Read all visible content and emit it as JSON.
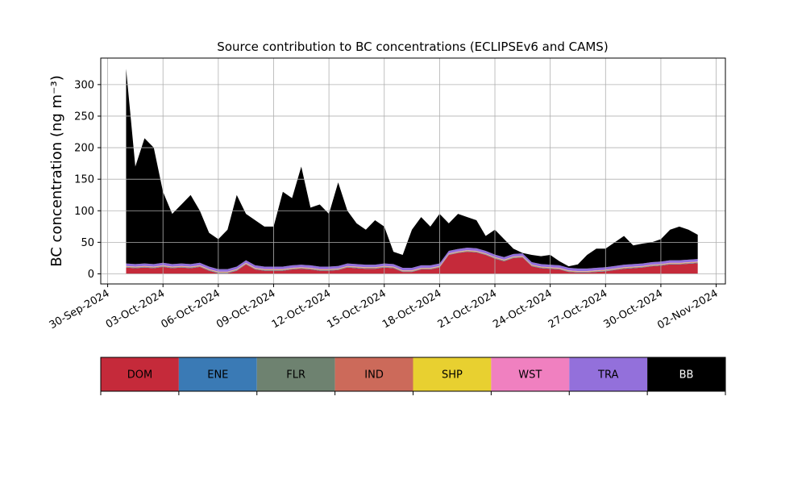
{
  "chart_data": {
    "type": "stacked_area",
    "title": "Source contribution to BC concentrations (ECLIPSEv6 and CAMS)",
    "y_label": "BC concentration (ng m⁻³)",
    "x": [
      "2024-10-01T00:00",
      "2024-10-01T12:00",
      "2024-10-02T00:00",
      "2024-10-02T12:00",
      "2024-10-03T00:00",
      "2024-10-03T12:00",
      "2024-10-04T00:00",
      "2024-10-04T12:00",
      "2024-10-05T00:00",
      "2024-10-05T12:00",
      "2024-10-06T00:00",
      "2024-10-06T12:00",
      "2024-10-07T00:00",
      "2024-10-07T12:00",
      "2024-10-08T00:00",
      "2024-10-08T12:00",
      "2024-10-09T00:00",
      "2024-10-09T12:00",
      "2024-10-10T00:00",
      "2024-10-10T12:00",
      "2024-10-11T00:00",
      "2024-10-11T12:00",
      "2024-10-12T00:00",
      "2024-10-12T12:00",
      "2024-10-13T00:00",
      "2024-10-13T12:00",
      "2024-10-14T00:00",
      "2024-10-14T12:00",
      "2024-10-15T00:00",
      "2024-10-15T12:00",
      "2024-10-16T00:00",
      "2024-10-16T12:00",
      "2024-10-17T00:00",
      "2024-10-17T12:00",
      "2024-10-18T00:00",
      "2024-10-18T12:00",
      "2024-10-19T00:00",
      "2024-10-19T12:00",
      "2024-10-20T00:00",
      "2024-10-20T12:00",
      "2024-10-21T00:00",
      "2024-10-21T12:00",
      "2024-10-22T00:00",
      "2024-10-22T12:00",
      "2024-10-23T00:00",
      "2024-10-23T12:00",
      "2024-10-24T00:00",
      "2024-10-24T12:00",
      "2024-10-25T00:00",
      "2024-10-25T12:00",
      "2024-10-26T00:00",
      "2024-10-26T12:00",
      "2024-10-27T00:00",
      "2024-10-27T12:00",
      "2024-10-28T00:00",
      "2024-10-28T12:00",
      "2024-10-29T00:00",
      "2024-10-29T12:00",
      "2024-10-30T00:00",
      "2024-10-30T12:00",
      "2024-10-31T00:00",
      "2024-10-31T12:00",
      "2024-11-01T00:00"
    ],
    "series": [
      {
        "name": "DOM",
        "color": "#c52a3a",
        "values": [
          10,
          9,
          10,
          9,
          11,
          9,
          10,
          9,
          11,
          5,
          1,
          1,
          5,
          15,
          7,
          5,
          5,
          5,
          7,
          8,
          7,
          5,
          5,
          6,
          10,
          9,
          8,
          8,
          10,
          9,
          3,
          3,
          7,
          7,
          10,
          30,
          33,
          35,
          34,
          30,
          24,
          20,
          25,
          26,
          12,
          9,
          8,
          7,
          3,
          2,
          2,
          3,
          4,
          6,
          8,
          9,
          10,
          12,
          13,
          15,
          15,
          16,
          17
        ]
      },
      {
        "name": "ENE",
        "color": "#3a7ab5",
        "values": [
          0.5,
          0.5,
          0.5,
          0.5,
          0.5,
          0.5,
          0.5,
          0.5,
          0.5,
          0.5,
          0.5,
          0.5,
          0.5,
          0.5,
          0.5,
          0.5,
          0.5,
          0.5,
          0.5,
          0.5,
          0.5,
          0.5,
          0.5,
          0.5,
          0.5,
          0.5,
          0.5,
          0.5,
          0.5,
          0.5,
          0.5,
          0.5,
          0.5,
          0.5,
          0.5,
          0.5,
          0.5,
          0.5,
          0.5,
          0.5,
          0.5,
          0.5,
          0.5,
          0.5,
          0.5,
          0.5,
          0.5,
          0.5,
          0.5,
          0.5,
          0.5,
          0.5,
          0.5,
          0.5,
          0.5,
          0.5,
          0.5,
          0.5,
          0.5,
          0.5,
          0.5,
          0.5,
          0.5
        ]
      },
      {
        "name": "FLR",
        "color": "#6e8270",
        "values": [
          0.5,
          0.5,
          0.5,
          0.5,
          0.5,
          0.5,
          0.5,
          0.5,
          0.5,
          0.5,
          0.5,
          0.5,
          0.5,
          0.5,
          0.5,
          0.5,
          0.5,
          0.5,
          0.5,
          0.5,
          0.5,
          0.5,
          0.5,
          0.5,
          0.5,
          0.5,
          0.5,
          0.5,
          0.5,
          0.5,
          0.5,
          0.5,
          0.5,
          0.5,
          0.5,
          0.5,
          0.5,
          0.5,
          0.5,
          0.5,
          0.5,
          0.5,
          0.5,
          0.5,
          0.5,
          0.5,
          0.5,
          0.5,
          0.5,
          0.5,
          0.5,
          0.5,
          0.5,
          0.5,
          0.5,
          0.5,
          0.5,
          0.5,
          0.5,
          0.5,
          0.5,
          0.5,
          0.5
        ]
      },
      {
        "name": "IND",
        "color": "#cc6a5a",
        "values": [
          0.5,
          0.5,
          0.5,
          0.5,
          0.5,
          0.5,
          0.5,
          0.5,
          0.5,
          0.5,
          0.5,
          0.5,
          0.5,
          0.5,
          0.5,
          0.5,
          0.5,
          0.5,
          0.5,
          0.5,
          0.5,
          0.5,
          0.5,
          0.5,
          0.5,
          0.5,
          0.5,
          0.5,
          0.5,
          0.5,
          0.5,
          0.5,
          0.5,
          0.5,
          0.5,
          0.5,
          0.5,
          0.5,
          0.5,
          0.5,
          0.5,
          0.5,
          0.5,
          0.5,
          0.5,
          0.5,
          0.5,
          0.5,
          0.5,
          0.5,
          0.5,
          0.5,
          0.5,
          0.5,
          0.5,
          0.5,
          0.5,
          0.5,
          0.5,
          0.5,
          0.5,
          0.5,
          0.5
        ]
      },
      {
        "name": "SHP",
        "color": "#e8d030",
        "values": [
          0.5,
          0.5,
          0.5,
          0.5,
          0.5,
          0.5,
          0.5,
          0.5,
          0.5,
          0.5,
          0.5,
          0.5,
          0.5,
          0.5,
          0.5,
          0.5,
          0.5,
          0.5,
          0.5,
          0.5,
          0.5,
          0.5,
          0.5,
          0.5,
          0.5,
          0.5,
          0.5,
          0.5,
          0.5,
          0.5,
          0.5,
          0.5,
          0.5,
          0.5,
          0.5,
          0.5,
          0.5,
          0.5,
          0.5,
          0.5,
          0.5,
          0.5,
          0.5,
          0.5,
          0.5,
          0.5,
          0.5,
          0.5,
          0.5,
          0.5,
          0.5,
          0.5,
          0.5,
          0.5,
          0.5,
          0.5,
          0.5,
          0.5,
          0.5,
          0.5,
          0.5,
          0.5,
          0.5
        ]
      },
      {
        "name": "WST",
        "color": "#f080c0",
        "values": [
          0.5,
          0.5,
          0.5,
          0.5,
          0.5,
          0.5,
          0.5,
          0.5,
          0.5,
          0.5,
          0.5,
          0.5,
          0.5,
          0.5,
          0.5,
          0.5,
          0.5,
          0.5,
          0.5,
          0.5,
          0.5,
          0.5,
          0.5,
          0.5,
          0.5,
          0.5,
          0.5,
          0.5,
          0.5,
          0.5,
          0.5,
          0.5,
          0.5,
          0.5,
          0.5,
          0.5,
          0.5,
          0.5,
          0.5,
          0.5,
          0.5,
          0.5,
          0.5,
          0.5,
          0.5,
          0.5,
          0.5,
          0.5,
          0.5,
          0.5,
          0.5,
          0.5,
          0.5,
          0.5,
          0.5,
          0.5,
          0.5,
          0.5,
          0.5,
          0.5,
          0.5,
          0.5,
          0.5
        ]
      },
      {
        "name": "TRA",
        "color": "#9370db",
        "values": [
          4,
          4,
          4,
          4,
          4,
          4,
          4,
          4,
          4,
          4,
          4,
          4,
          4,
          4,
          4,
          4,
          4,
          4,
          4,
          4,
          4,
          4,
          4,
          4,
          4,
          4,
          4,
          4,
          4,
          4,
          4,
          4,
          4,
          4,
          4,
          4,
          4,
          4,
          4,
          4,
          4,
          4,
          4,
          4,
          4,
          4,
          4,
          4,
          4,
          4,
          4,
          4,
          4,
          4,
          4,
          4,
          4,
          4,
          4,
          4,
          4,
          4,
          4
        ]
      },
      {
        "name": "BB",
        "color": "#000000",
        "values": [
          308.5,
          154.5,
          198.5,
          184.5,
          112.5,
          79.5,
          93.5,
          109.5,
          82.5,
          53.5,
          47.5,
          62.5,
          113.5,
          73.5,
          71.5,
          63.5,
          63.5,
          118.5,
          106.5,
          155.5,
          91.5,
          98.5,
          83.5,
          132.5,
          83.5,
          64.5,
          55.5,
          70.5,
          58.5,
          19.5,
          20.5,
          60.5,
          76.5,
          61.5,
          78.5,
          43.5,
          55.5,
          48.5,
          44.5,
          23.5,
          39.5,
          28.5,
          8.5,
          0.5,
          11.5,
          12.5,
          15.5,
          6.5,
          2.5,
          6.5,
          21.5,
          30.5,
          29.5,
          37.5,
          45.5,
          29.5,
          31.5,
          31.5,
          35.5,
          48.5,
          53.5,
          47.5,
          38.5
        ]
      }
    ],
    "xlim": [
      "2024-09-29T15:00",
      "2024-11-02T12:00"
    ],
    "xticks": [
      {
        "value": "2024-09-30T00:00",
        "label": "30-Sep-2024"
      },
      {
        "value": "2024-10-03T00:00",
        "label": "03-Oct-2024"
      },
      {
        "value": "2024-10-06T00:00",
        "label": "06-Oct-2024"
      },
      {
        "value": "2024-10-09T00:00",
        "label": "09-Oct-2024"
      },
      {
        "value": "2024-10-12T00:00",
        "label": "12-Oct-2024"
      },
      {
        "value": "2024-10-15T00:00",
        "label": "15-Oct-2024"
      },
      {
        "value": "2024-10-18T00:00",
        "label": "18-Oct-2024"
      },
      {
        "value": "2024-10-21T00:00",
        "label": "21-Oct-2024"
      },
      {
        "value": "2024-10-24T00:00",
        "label": "24-Oct-2024"
      },
      {
        "value": "2024-10-27T00:00",
        "label": "27-Oct-2024"
      },
      {
        "value": "2024-10-30T00:00",
        "label": "30-Oct-2024"
      },
      {
        "value": "2024-11-02T00:00",
        "label": "02-Nov-2024"
      }
    ],
    "ylim": [
      -16,
      342
    ],
    "yticks": [
      0,
      50,
      100,
      150,
      200,
      250,
      300
    ],
    "grid": true
  }
}
